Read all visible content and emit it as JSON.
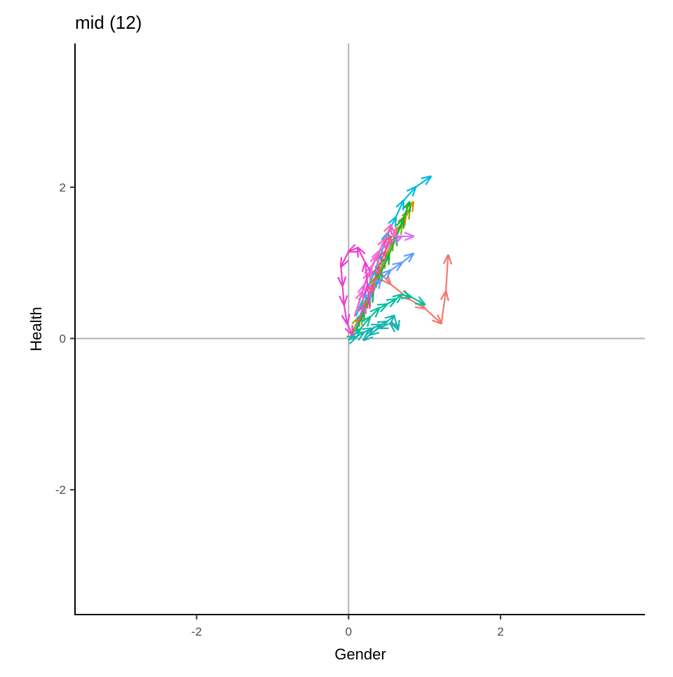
{
  "chart_data": {
    "type": "line",
    "title": "mid (12)",
    "xlabel": "Gender",
    "ylabel": "Health",
    "xlim": [
      -3.6,
      3.9
    ],
    "ylim": [
      -3.65,
      3.9
    ],
    "xticks": [
      {
        "value": -2,
        "label": "-2"
      },
      {
        "value": 0,
        "label": "0"
      },
      {
        "value": 2,
        "label": "2"
      }
    ],
    "yticks": [
      {
        "value": -2,
        "label": "-2"
      },
      {
        "value": 0,
        "label": "0"
      },
      {
        "value": 2,
        "label": "2"
      }
    ],
    "reference_lines": {
      "x": 0,
      "y": 0,
      "color": "#b3b3b3"
    },
    "grid": false,
    "legend": "none",
    "arrows": true,
    "series": [
      {
        "color": "#f8766d",
        "points": [
          [
            0.35,
            0.95
          ],
          [
            0.55,
            0.72
          ],
          [
            0.8,
            0.52
          ],
          [
            1.0,
            0.4
          ],
          [
            1.22,
            0.2
          ],
          [
            1.28,
            0.62
          ],
          [
            1.31,
            1.1
          ]
        ]
      },
      {
        "color": "#d39200",
        "points": [
          [
            0.05,
            0.05
          ],
          [
            0.18,
            0.3
          ],
          [
            0.28,
            0.55
          ],
          [
            0.4,
            0.85
          ],
          [
            0.52,
            1.15
          ],
          [
            0.63,
            1.4
          ],
          [
            0.75,
            1.62
          ],
          [
            0.85,
            1.8
          ]
        ]
      },
      {
        "color": "#93aa00",
        "points": [
          [
            0.03,
            0.04
          ],
          [
            0.14,
            0.28
          ],
          [
            0.25,
            0.52
          ],
          [
            0.36,
            0.8
          ],
          [
            0.48,
            1.05
          ],
          [
            0.58,
            1.28
          ],
          [
            0.7,
            1.5
          ],
          [
            0.8,
            1.7
          ]
        ]
      },
      {
        "color": "#00ba38",
        "points": [
          [
            0.1,
            0.1
          ],
          [
            0.2,
            0.35
          ],
          [
            0.32,
            0.6
          ],
          [
            0.43,
            0.88
          ],
          [
            0.53,
            1.1
          ],
          [
            0.63,
            1.35
          ],
          [
            0.72,
            1.58
          ],
          [
            0.8,
            1.8
          ]
        ]
      },
      {
        "color": "#00c19f",
        "points": [
          [
            0.02,
            0.0
          ],
          [
            0.15,
            0.12
          ],
          [
            0.28,
            0.28
          ],
          [
            0.4,
            0.4
          ],
          [
            0.5,
            0.45
          ],
          [
            0.62,
            0.52
          ],
          [
            0.7,
            0.58
          ],
          [
            0.82,
            0.55
          ],
          [
            1.0,
            0.45
          ]
        ]
      },
      {
        "color": "#00b9e3",
        "points": [
          [
            0.1,
            0.3
          ],
          [
            0.22,
            0.6
          ],
          [
            0.35,
            0.9
          ],
          [
            0.42,
            1.1
          ],
          [
            0.52,
            1.4
          ],
          [
            0.62,
            1.6
          ],
          [
            0.72,
            1.82
          ],
          [
            0.88,
            2.0
          ],
          [
            1.08,
            2.14
          ]
        ]
      },
      {
        "color": "#19b4b0",
        "points": [
          [
            0.0,
            -0.02
          ],
          [
            0.1,
            0.02
          ],
          [
            0.2,
            0.08
          ],
          [
            0.3,
            0.13
          ],
          [
            0.42,
            0.18
          ],
          [
            0.5,
            0.22
          ],
          [
            0.6,
            0.3
          ],
          [
            0.65,
            0.12
          ],
          [
            0.55,
            0.2
          ],
          [
            0.4,
            0.14
          ],
          [
            0.28,
            0.05
          ],
          [
            0.2,
            -0.02
          ]
        ]
      },
      {
        "color": "#619cff",
        "points": [
          [
            0.1,
            0.15
          ],
          [
            0.2,
            0.45
          ],
          [
            0.3,
            0.6
          ],
          [
            0.42,
            0.78
          ],
          [
            0.55,
            0.9
          ],
          [
            0.7,
            1.0
          ],
          [
            0.85,
            1.12
          ]
        ]
      },
      {
        "color": "#db72fb",
        "points": [
          [
            0.12,
            0.4
          ],
          [
            0.2,
            0.7
          ],
          [
            0.3,
            0.95
          ],
          [
            0.4,
            1.15
          ],
          [
            0.55,
            1.28
          ],
          [
            0.7,
            1.35
          ],
          [
            0.85,
            1.35
          ]
        ]
      },
      {
        "color": "#ff61c3",
        "points": [
          [
            0.08,
            0.3
          ],
          [
            0.18,
            0.62
          ],
          [
            0.28,
            0.88
          ],
          [
            0.38,
            1.1
          ],
          [
            0.48,
            1.32
          ],
          [
            0.56,
            1.5
          ],
          [
            0.62,
            1.35
          ]
        ]
      },
      {
        "color": "#f03dcf",
        "points": [
          [
            0.28,
            0.4
          ],
          [
            0.25,
            0.7
          ],
          [
            0.22,
            1.0
          ],
          [
            0.12,
            1.2
          ],
          [
            0.0,
            1.15
          ],
          [
            -0.1,
            0.95
          ],
          [
            -0.08,
            0.7
          ],
          [
            -0.06,
            0.45
          ],
          [
            -0.02,
            0.2
          ],
          [
            0.05,
            0.05
          ]
        ]
      },
      {
        "color": "#e7568c",
        "points": [
          [
            0.12,
            0.2
          ],
          [
            0.22,
            0.45
          ],
          [
            0.32,
            0.72
          ],
          [
            0.4,
            0.95
          ],
          [
            0.48,
            1.15
          ],
          [
            0.55,
            1.35
          ]
        ]
      }
    ]
  }
}
